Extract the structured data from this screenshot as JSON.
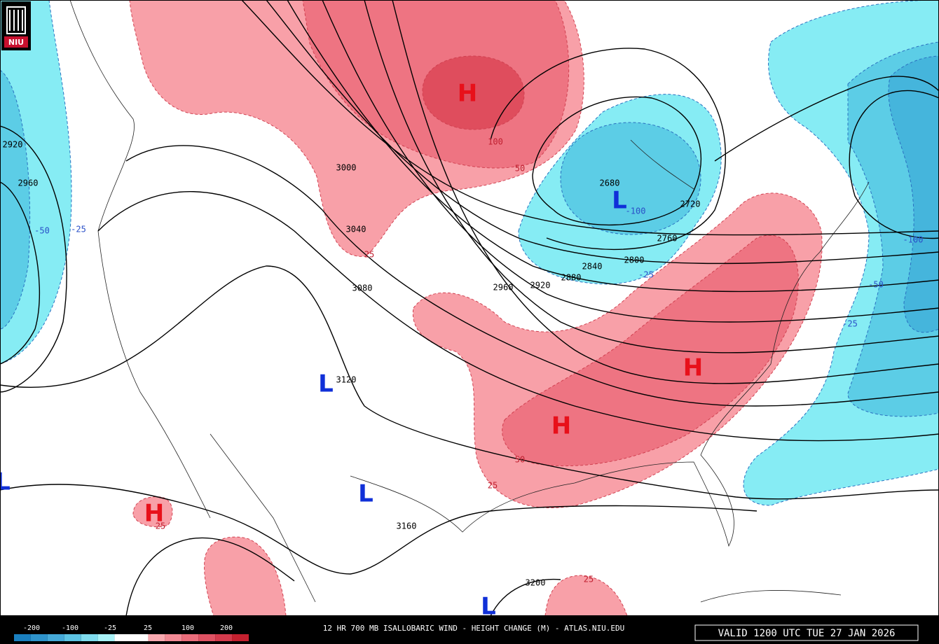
{
  "logo": "NIU",
  "footer": {
    "title": "12 HR 700 MB ISALLOBARIC WIND - HEIGHT CHANGE (M) - ATLAS.NIU.EDU",
    "valid": "VALID 1200 UTC TUE 27 JAN 2026"
  },
  "legend": {
    "labels": [
      "-200",
      "-100",
      "-25",
      "25",
      "100",
      "200"
    ],
    "colors": [
      "#1a7fbf",
      "#2e93cb",
      "#45a9d8",
      "#5cc3e3",
      "#7fdcee",
      "#a8f2f7",
      "#ffffff",
      "#ffffff",
      "#f9a9b0",
      "#f28a95",
      "#ea6d7b",
      "#df5263",
      "#d33a4c",
      "#c4202f"
    ]
  },
  "height_contour_labels": [
    "2920",
    "2960",
    "3000",
    "3040",
    "3080",
    "3120",
    "3160",
    "3200",
    "2680",
    "2720",
    "2760",
    "2800",
    "2840",
    "2880",
    "2920",
    "2960"
  ],
  "change_labels": [
    "-50",
    "-25",
    "25",
    "50",
    "100",
    "-100",
    "-25",
    "-100",
    "-50",
    "-25",
    "50",
    "25",
    "25",
    "25"
  ],
  "centers": [
    "H",
    "H",
    "H",
    "H",
    "L",
    "L",
    "L",
    "L",
    "L"
  ]
}
